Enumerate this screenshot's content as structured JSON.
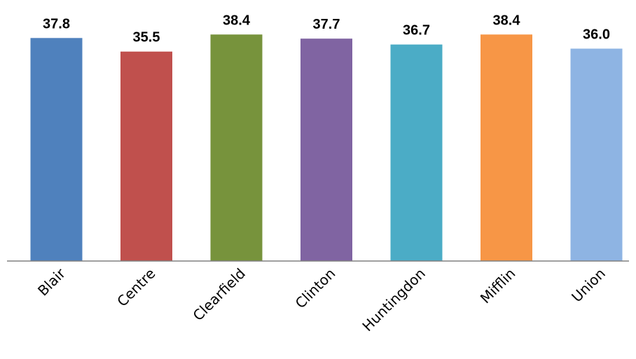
{
  "chart_data": {
    "type": "bar",
    "title": "",
    "xlabel": "",
    "ylabel": "",
    "categories": [
      "Blair",
      "Centre",
      "Clearfield",
      "Clinton",
      "Huntingdon",
      "Mifflin",
      "Union"
    ],
    "values": [
      37.8,
      35.5,
      38.4,
      37.7,
      36.7,
      38.4,
      36.0
    ],
    "value_labels": [
      "37.8",
      "35.5",
      "38.4",
      "37.7",
      "36.7",
      "38.4",
      "36.0"
    ],
    "colors": [
      "#4f81bd",
      "#c0504d",
      "#77933c",
      "#8064a2",
      "#4bacc6",
      "#f79646",
      "#8eb4e3"
    ],
    "axis_color": "#808080",
    "ylim": [
      0,
      41.4
    ],
    "grid": false,
    "legend": "none",
    "data_labels": "above"
  }
}
